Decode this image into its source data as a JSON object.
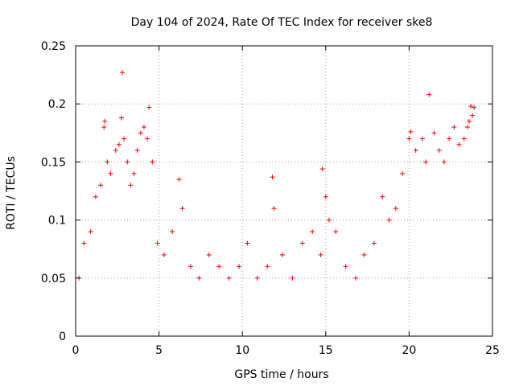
{
  "chart_data": {
    "type": "scatter",
    "title": "Day 104 of 2024, Rate Of TEC Index for receiver ske8",
    "xlabel": "GPS time / hours",
    "ylabel": "ROTI / TECUs",
    "xlim": [
      0,
      25
    ],
    "ylim": [
      0,
      0.25
    ],
    "x_ticks": [
      0,
      5,
      10,
      15,
      20,
      25
    ],
    "x_tick_labels": [
      "0",
      "5",
      "10",
      "15",
      "20",
      "25"
    ],
    "y_ticks": [
      0,
      0.05,
      0.1,
      0.15,
      0.2,
      0.25
    ],
    "y_tick_labels": [
      "0",
      "0.05",
      "0.1",
      "0.15",
      "0.2",
      "0.25"
    ],
    "grid": true,
    "marker": "+",
    "color": "#ff0000",
    "series": [
      {
        "name": "ROTI",
        "x": [
          0.2,
          0.5,
          0.9,
          1.2,
          1.5,
          1.7,
          1.75,
          1.9,
          2.1,
          2.4,
          2.6,
          2.75,
          2.8,
          2.9,
          3.1,
          3.3,
          3.5,
          3.7,
          3.9,
          4.1,
          4.3,
          4.4,
          4.6,
          4.9,
          5.3,
          5.8,
          6.2,
          6.4,
          6.9,
          7.4,
          8.0,
          8.6,
          9.2,
          9.8,
          10.3,
          10.9,
          11.5,
          11.8,
          11.9,
          12.4,
          13.0,
          13.6,
          14.2,
          14.7,
          14.8,
          15.0,
          15.2,
          15.6,
          16.2,
          16.8,
          17.3,
          17.9,
          18.4,
          18.8,
          19.2,
          19.6,
          20.0,
          20.1,
          20.4,
          20.8,
          21.0,
          21.2,
          21.5,
          21.8,
          22.1,
          22.4,
          22.7,
          23.0,
          23.3,
          23.5,
          23.6,
          23.7,
          23.8,
          23.9
        ],
        "y": [
          0.05,
          0.08,
          0.09,
          0.12,
          0.13,
          0.18,
          0.185,
          0.15,
          0.14,
          0.16,
          0.165,
          0.188,
          0.227,
          0.17,
          0.15,
          0.13,
          0.14,
          0.16,
          0.175,
          0.18,
          0.17,
          0.197,
          0.15,
          0.08,
          0.07,
          0.09,
          0.135,
          0.11,
          0.06,
          0.05,
          0.07,
          0.06,
          0.05,
          0.06,
          0.08,
          0.05,
          0.06,
          0.137,
          0.11,
          0.07,
          0.05,
          0.08,
          0.09,
          0.07,
          0.144,
          0.12,
          0.1,
          0.09,
          0.06,
          0.05,
          0.07,
          0.08,
          0.12,
          0.1,
          0.11,
          0.14,
          0.17,
          0.176,
          0.16,
          0.17,
          0.15,
          0.208,
          0.175,
          0.16,
          0.15,
          0.17,
          0.18,
          0.165,
          0.17,
          0.18,
          0.185,
          0.198,
          0.19,
          0.197
        ]
      }
    ]
  }
}
